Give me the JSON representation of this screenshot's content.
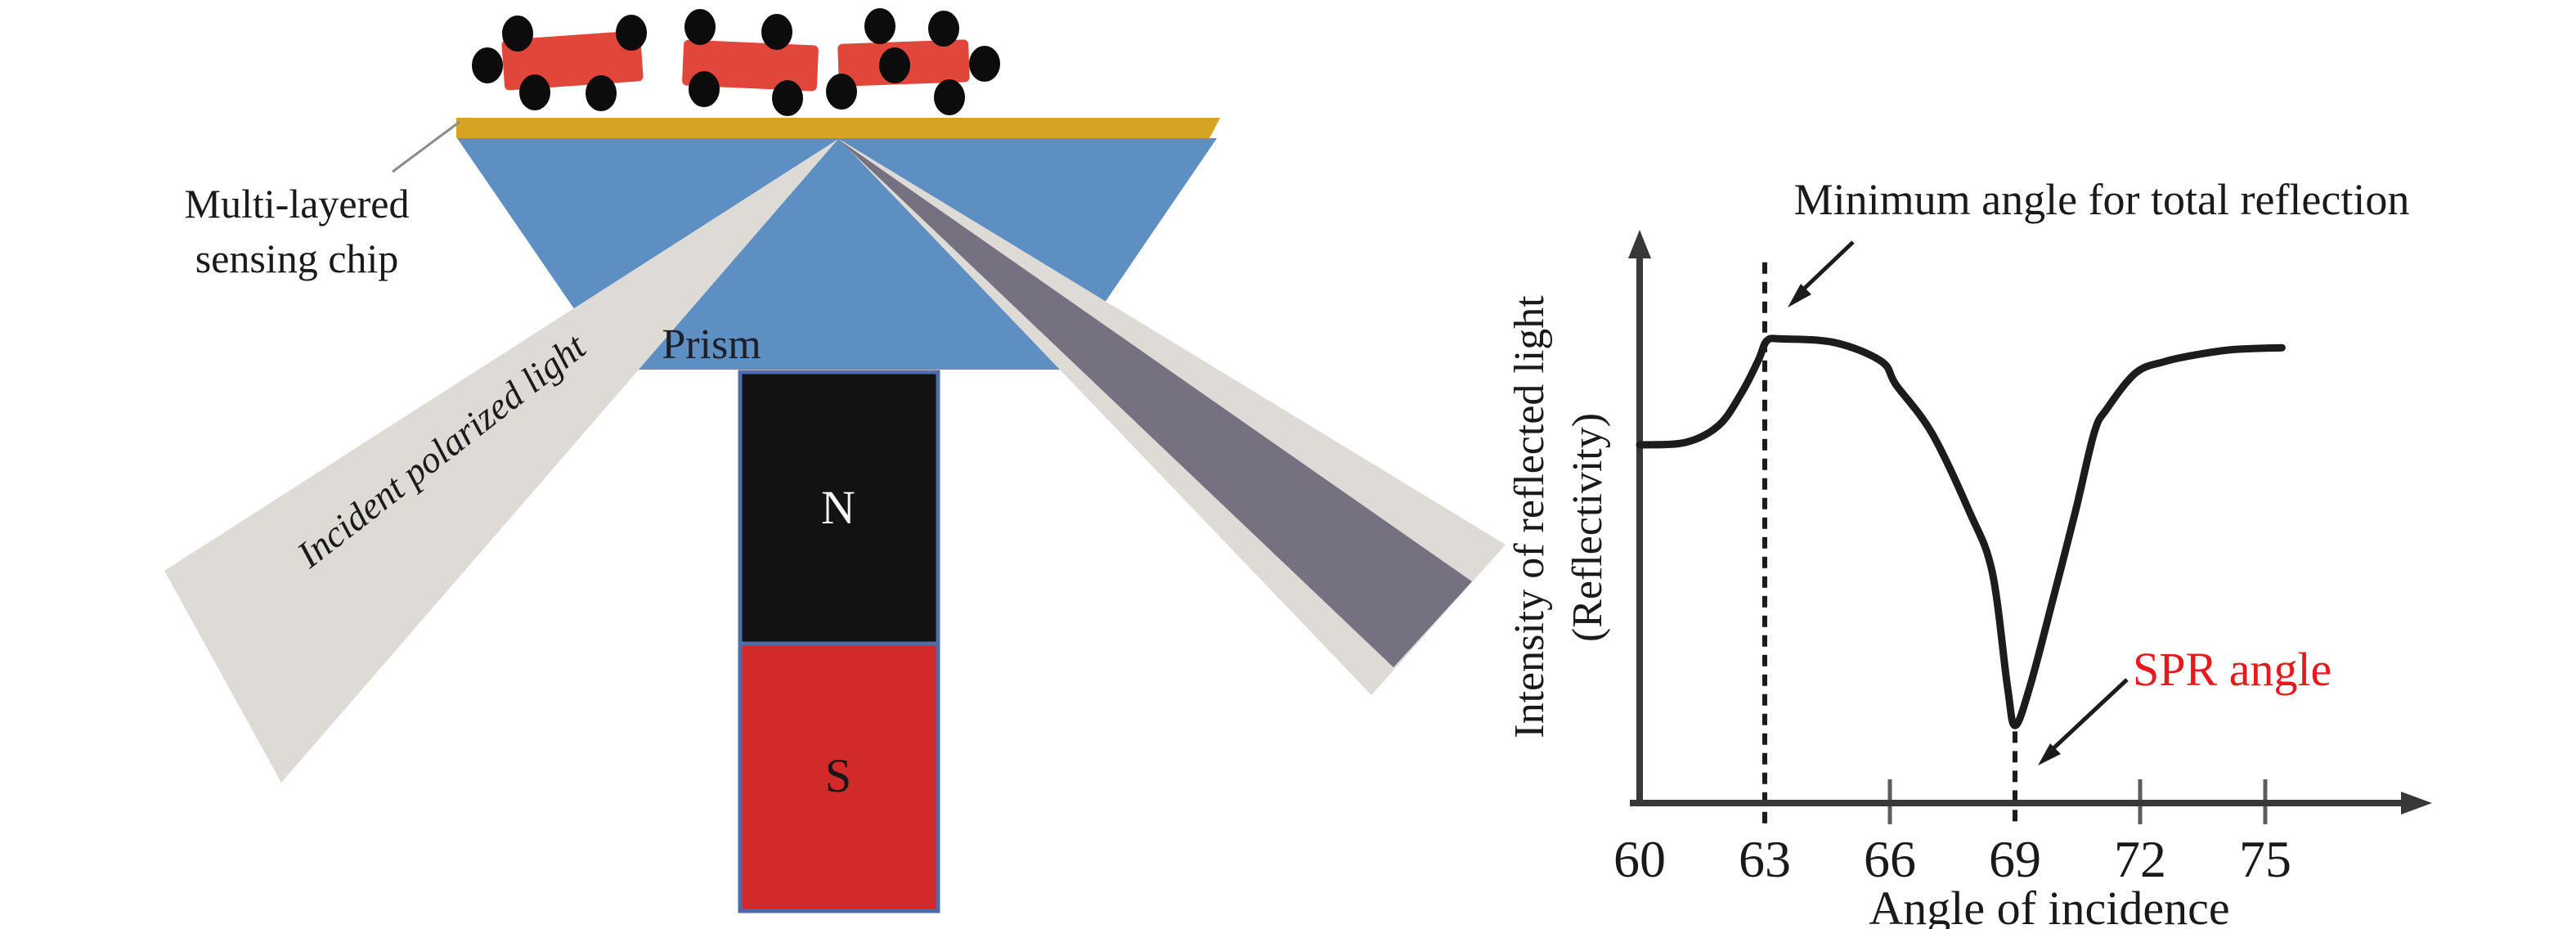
{
  "figure": {
    "left": {
      "chip_label_line1": "Multi-layered",
      "chip_label_line2": "sensing chip",
      "prism_label": "Prism",
      "incident_light_label": "Incident polarized light",
      "magnet_north_label": "N",
      "magnet_south_label": "S"
    }
  },
  "colors": {
    "gold": "#d6a323",
    "prism_blue": "#5d8fc3",
    "nanoparticle_red": "#e0473a",
    "dot_black": "#0c0c0c",
    "magnet_red": "#d22a2b",
    "magnet_black": "#121212",
    "magnet_border_blue": "#4d6ca8",
    "beam_light": "#dedad6",
    "beam_dark": "#767180",
    "curve_black": "#1c1c1c",
    "axis_gray": "#383838",
    "tick_gray": "#5c5c5c",
    "leader_gray": "#8c8c8c",
    "spr_red": "#e6191c",
    "text_dark": "#1a1a1a"
  },
  "chart_data": {
    "type": "line",
    "title": "",
    "xlabel": "Angle of incidence",
    "ylabel_line1": "Intensity of reflected light",
    "ylabel_line2": "(Reflectivity)",
    "x_ticks": [
      60,
      63,
      66,
      69,
      72,
      75
    ],
    "x_tick_marks": [
      66,
      72,
      75
    ],
    "xlim": [
      60,
      77
    ],
    "ylim": [
      0,
      1.15
    ],
    "grid": false,
    "legend": false,
    "x": [
      60,
      61.1,
      61.9,
      62.45,
      62.85,
      63.05,
      63.4,
      64.7,
      65.8,
      66.15,
      67.0,
      67.9,
      68.45,
      68.82,
      69.0,
      69.35,
      69.9,
      70.45,
      70.9,
      71.2,
      71.9,
      72.6,
      73.3,
      74.2,
      75.4
    ],
    "y": [
      0.73,
      0.735,
      0.77,
      0.837,
      0.903,
      0.942,
      0.946,
      0.938,
      0.9,
      0.852,
      0.755,
      0.595,
      0.472,
      0.237,
      0.158,
      0.235,
      0.412,
      0.595,
      0.755,
      0.803,
      0.877,
      0.9,
      0.913,
      0.924,
      0.928
    ],
    "annotations": [
      {
        "text": "Minimum angle for total reflection",
        "angle": 63,
        "color": "#1a1a1a"
      },
      {
        "text": "SPR angle",
        "angle": 69,
        "color": "#e6191c"
      }
    ],
    "reference_lines": [
      {
        "angle": 63,
        "v_from": -0.042,
        "v_to": 1.102
      },
      {
        "angle": 69,
        "v_from": -0.042,
        "v_to": 0.146
      }
    ]
  }
}
